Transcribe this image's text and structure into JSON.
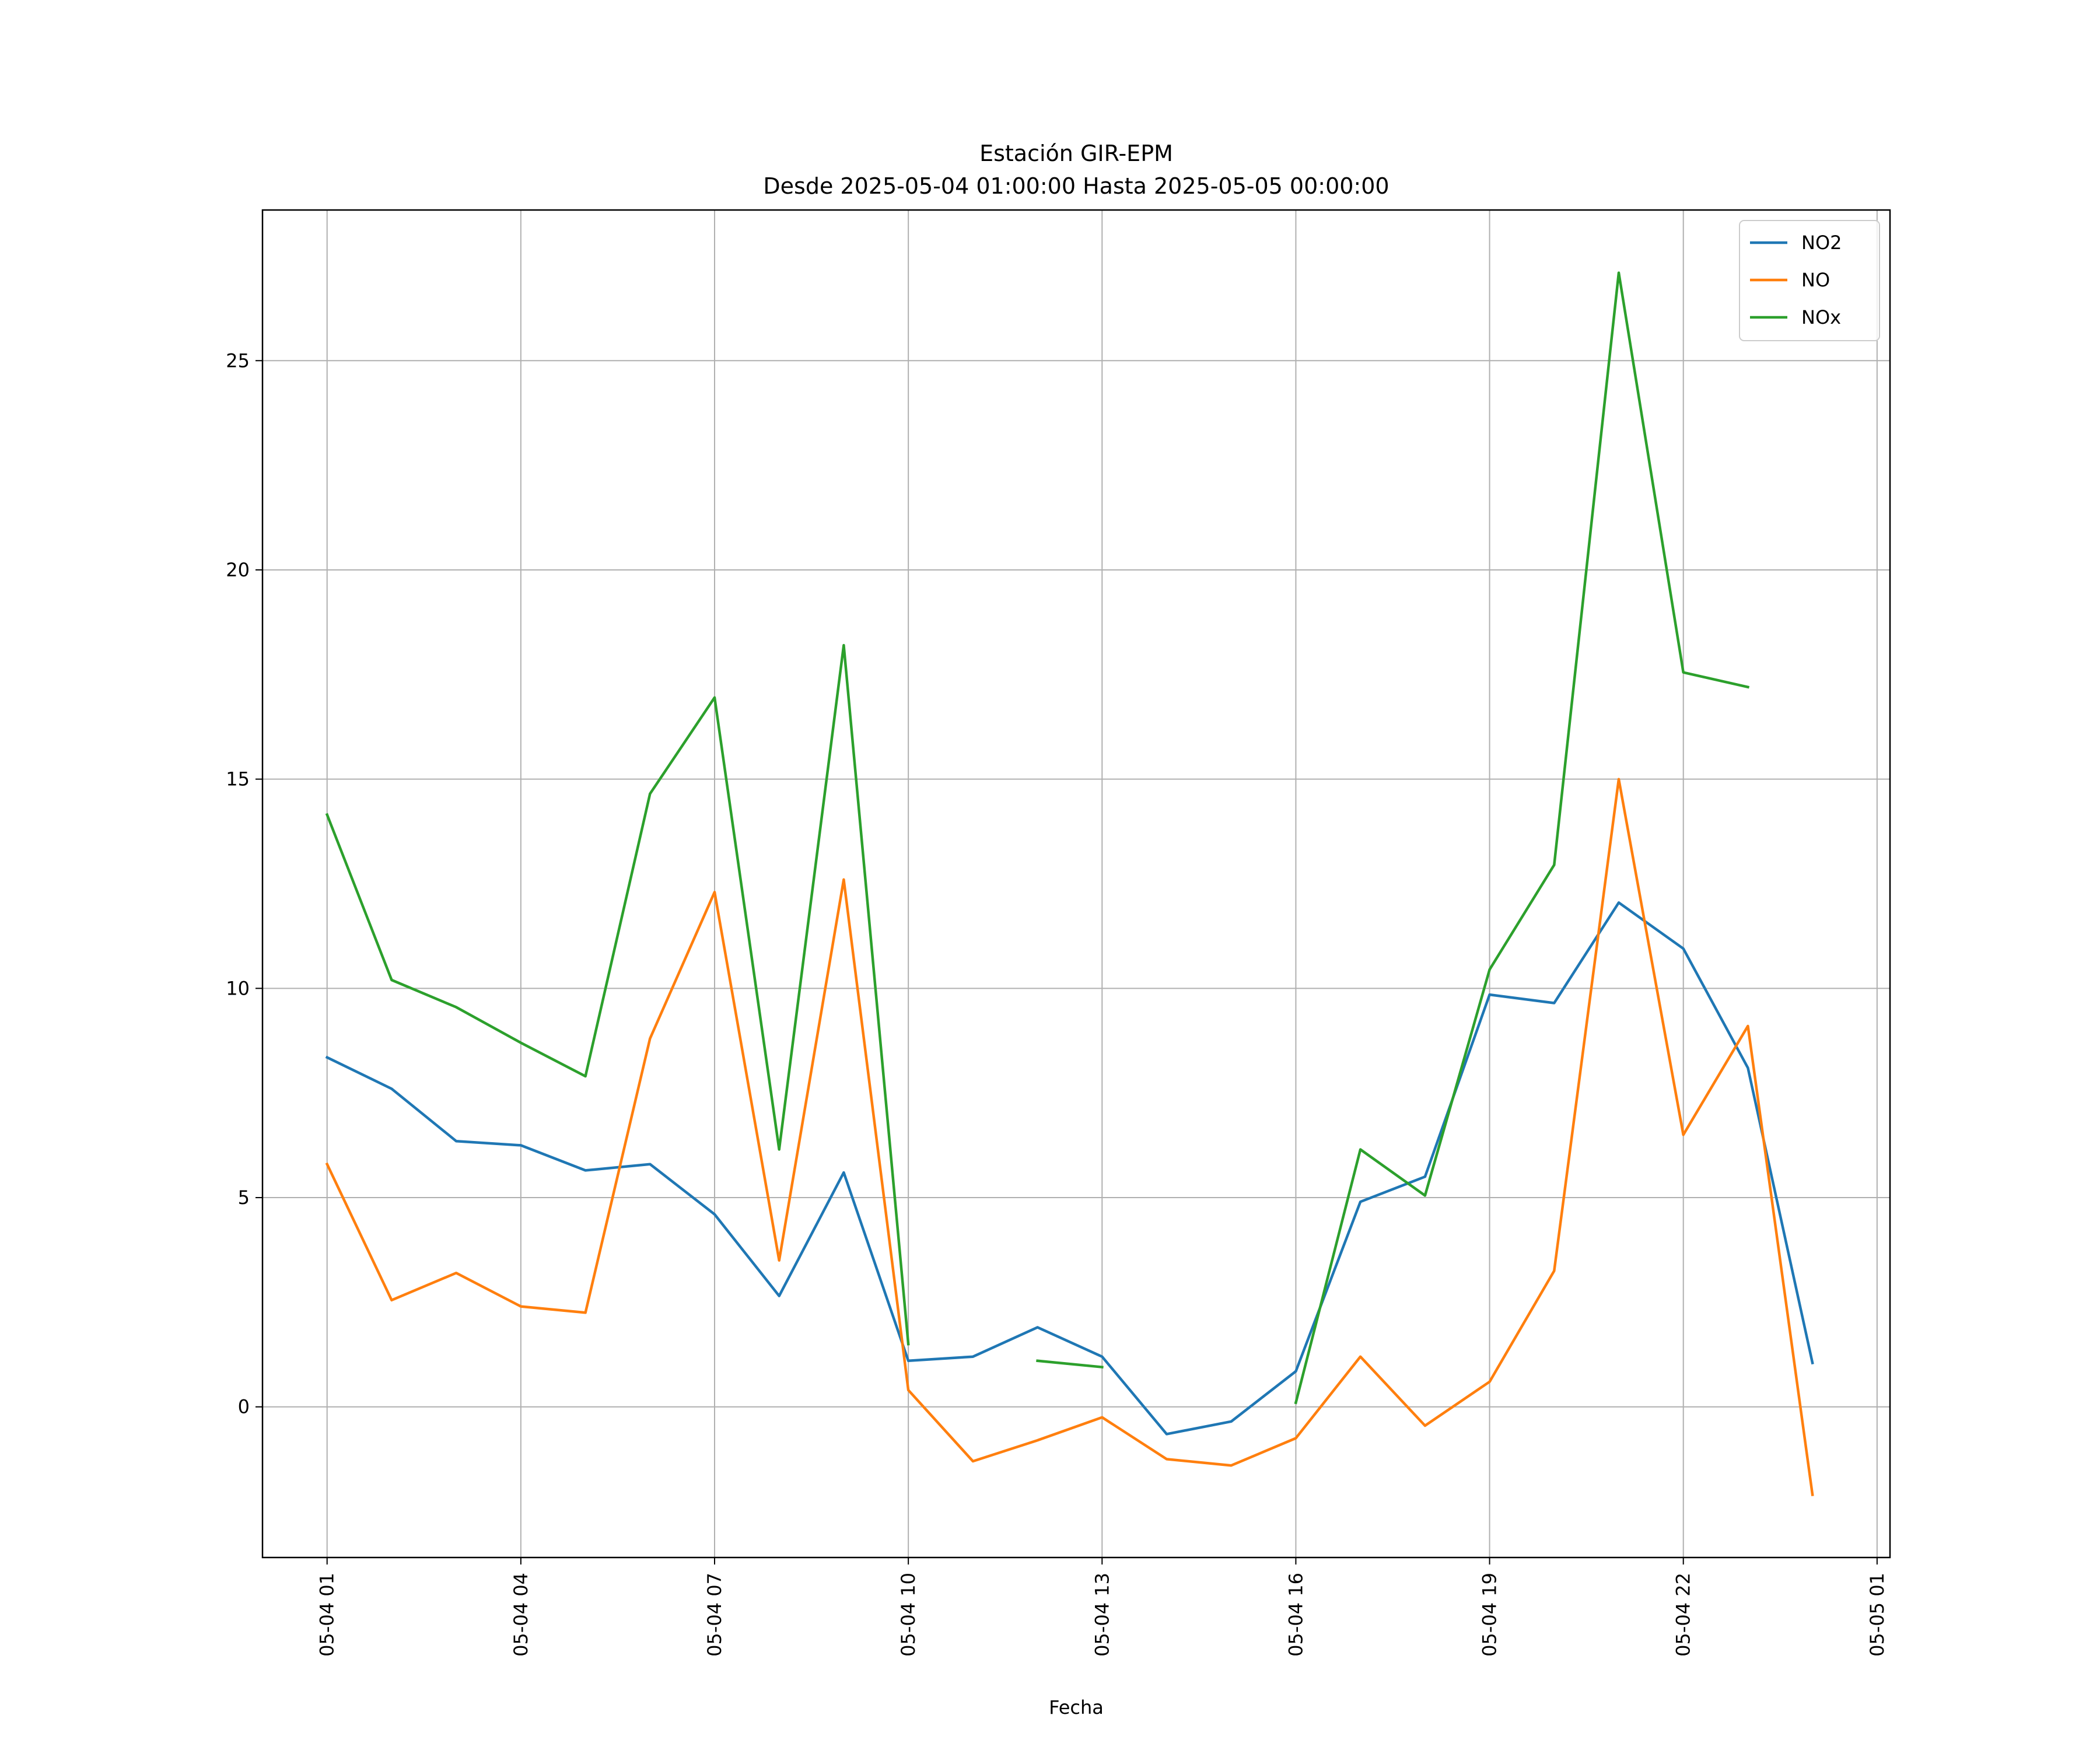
{
  "chart_data": {
    "type": "line",
    "title": "Estación GIR-EPM",
    "subtitle": "Desde 2025-05-04 01:00:00 Hasta 2025-05-05 00:00:00",
    "xlabel": "Fecha",
    "ylabel": "",
    "x": [
      "2025-05-04 01:00",
      "2025-05-04 02:00",
      "2025-05-04 03:00",
      "2025-05-04 04:00",
      "2025-05-04 05:00",
      "2025-05-04 06:00",
      "2025-05-04 07:00",
      "2025-05-04 08:00",
      "2025-05-04 09:00",
      "2025-05-04 10:00",
      "2025-05-04 11:00",
      "2025-05-04 12:00",
      "2025-05-04 13:00",
      "2025-05-04 14:00",
      "2025-05-04 15:00",
      "2025-05-04 16:00",
      "2025-05-04 17:00",
      "2025-05-04 18:00",
      "2025-05-04 19:00",
      "2025-05-04 20:00",
      "2025-05-04 21:00",
      "2025-05-04 22:00",
      "2025-05-04 23:00",
      "2025-05-05 00:00"
    ],
    "xlim": [
      "2025-05-04 00:00",
      "2025-05-05 01:12"
    ],
    "ylim": [
      -3.6,
      28.6
    ],
    "x_ticks": [
      "05-04 01",
      "05-04 04",
      "05-04 07",
      "05-04 10",
      "05-04 13",
      "05-04 16",
      "05-04 19",
      "05-04 22",
      "05-05 01"
    ],
    "x_tick_values": [
      "2025-05-04 01:00",
      "2025-05-04 04:00",
      "2025-05-04 07:00",
      "2025-05-04 10:00",
      "2025-05-04 13:00",
      "2025-05-04 16:00",
      "2025-05-04 19:00",
      "2025-05-04 22:00",
      "2025-05-05 01:00"
    ],
    "y_ticks": [
      0,
      5,
      10,
      15,
      20,
      25
    ],
    "grid": true,
    "legend_position": "top-right",
    "series": [
      {
        "name": "NO2",
        "color": "#1f77b4",
        "values": [
          8.35,
          7.6,
          6.35,
          6.25,
          5.65,
          5.8,
          4.6,
          2.65,
          5.6,
          1.1,
          1.2,
          1.9,
          1.2,
          -0.65,
          -0.35,
          0.85,
          4.9,
          5.5,
          9.85,
          9.65,
          12.05,
          10.95,
          8.1,
          1.05
        ]
      },
      {
        "name": "NO",
        "color": "#ff7f0e",
        "values": [
          5.8,
          2.55,
          3.2,
          2.4,
          2.25,
          8.8,
          12.3,
          3.5,
          12.6,
          0.4,
          -1.3,
          -0.8,
          -0.25,
          -1.25,
          -1.4,
          -0.75,
          1.2,
          -0.45,
          0.6,
          3.25,
          15.0,
          6.5,
          9.1,
          -2.1
        ]
      },
      {
        "name": "NOx",
        "color": "#2ca02c",
        "values": [
          14.15,
          10.2,
          9.55,
          8.7,
          7.9,
          14.65,
          16.95,
          6.15,
          18.2,
          1.5,
          null,
          1.1,
          0.95,
          null,
          null,
          0.1,
          6.15,
          5.05,
          10.45,
          12.95,
          27.1,
          17.55,
          17.2,
          null
        ]
      }
    ]
  }
}
